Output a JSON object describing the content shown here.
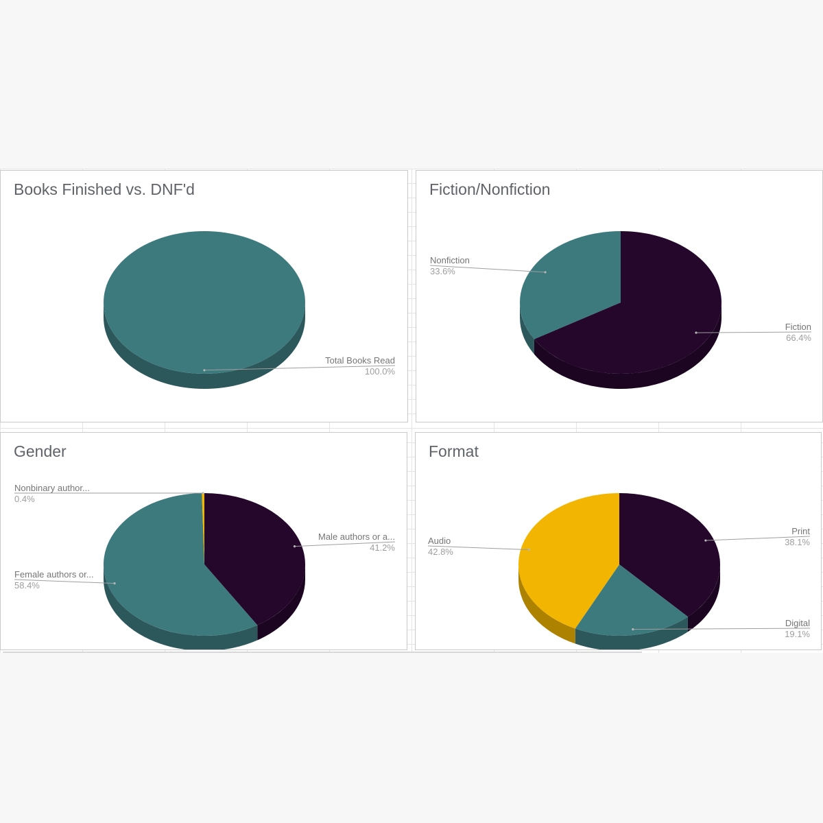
{
  "colors": {
    "teal": "#3d7a7e",
    "dark_purple": "#25072c",
    "gold": "#f2b501",
    "leader": "#9e9e9e"
  },
  "chart_data": [
    {
      "type": "pie",
      "title": "Books Finished vs. DNF'd",
      "slices": [
        {
          "label": "Total Books Read",
          "pct_label": "100.0%",
          "value": 100.0,
          "color": "#3d7a7e"
        }
      ]
    },
    {
      "type": "pie",
      "title": "Fiction/Nonfiction",
      "slices": [
        {
          "label": "Fiction",
          "pct_label": "66.4%",
          "value": 66.4,
          "color": "#25072c"
        },
        {
          "label": "Nonfiction",
          "pct_label": "33.6%",
          "value": 33.6,
          "color": "#3d7a7e"
        }
      ]
    },
    {
      "type": "pie",
      "title": "Gender",
      "slices": [
        {
          "label": "Male authors or a...",
          "pct_label": "41.2%",
          "value": 41.2,
          "color": "#25072c"
        },
        {
          "label": "Female authors or...",
          "pct_label": "58.4%",
          "value": 58.4,
          "color": "#3d7a7e"
        },
        {
          "label": "Nonbinary author...",
          "pct_label": "0.4%",
          "value": 0.4,
          "color": "#f2b501"
        }
      ]
    },
    {
      "type": "pie",
      "title": "Format",
      "slices": [
        {
          "label": "Print",
          "pct_label": "38.1%",
          "value": 38.1,
          "color": "#25072c"
        },
        {
          "label": "Digital",
          "pct_label": "19.1%",
          "value": 19.1,
          "color": "#3d7a7e"
        },
        {
          "label": "Audio",
          "pct_label": "42.8%",
          "value": 42.8,
          "color": "#f2b501"
        }
      ]
    }
  ]
}
